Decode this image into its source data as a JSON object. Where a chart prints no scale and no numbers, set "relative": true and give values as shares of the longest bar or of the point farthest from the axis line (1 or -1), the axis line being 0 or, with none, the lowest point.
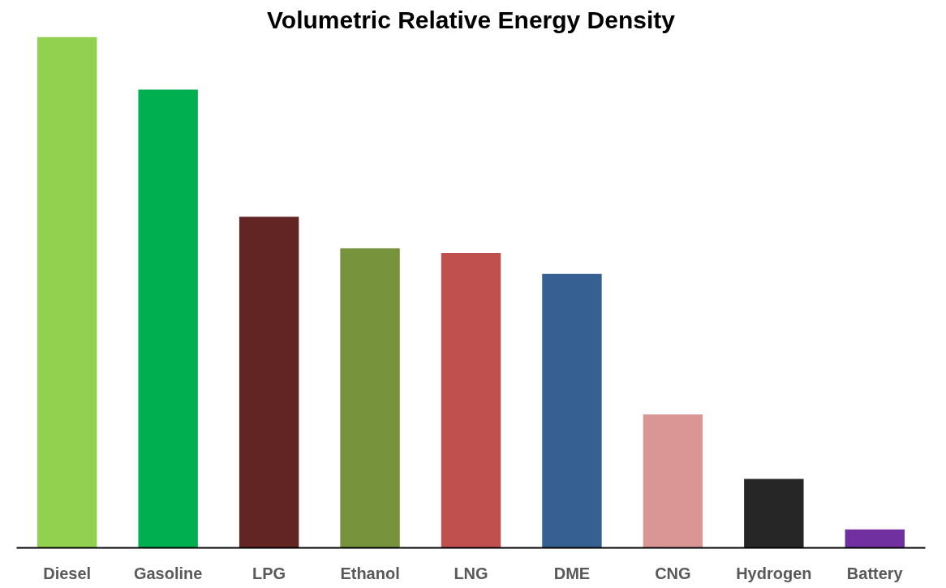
{
  "chart_data": {
    "type": "bar",
    "title": "Volumetric Relative Energy Density",
    "relative": true,
    "categories": [
      "Diesel",
      "Gasoline",
      "LPG",
      "Ethanol",
      "LNG",
      "DME",
      "CNG",
      "Hydrogen",
      "Battery"
    ],
    "values": [
      1,
      0.897,
      0.648,
      0.586,
      0.577,
      0.536,
      0.261,
      0.135,
      0.036
    ],
    "colors": [
      "#92d050",
      "#00b050",
      "#632523",
      "#77933c",
      "#c0504d",
      "#376092",
      "#d99694",
      "#262626",
      "#7030a0"
    ],
    "grid": false
  }
}
